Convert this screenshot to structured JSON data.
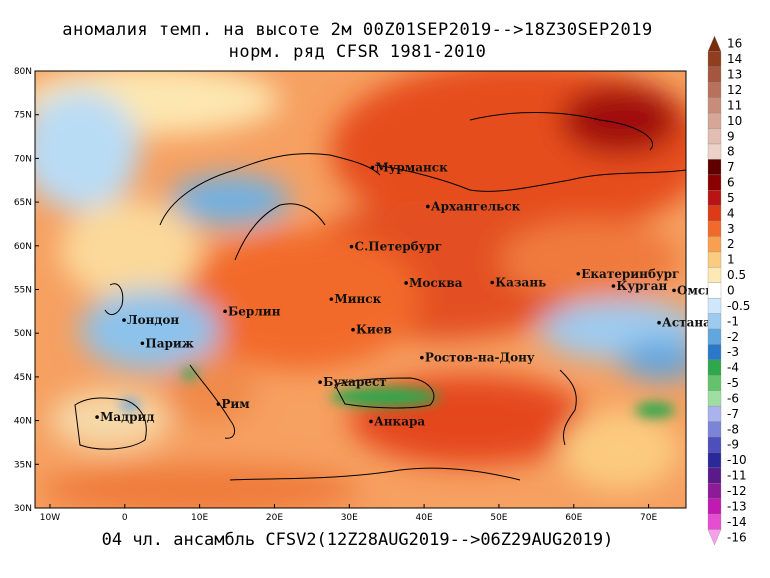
{
  "title_line1": "аномалия темп. на высоте 2м 00Z01SEP2019-->18Z30SEP2019",
  "title_line2": "норм. ряд CFSR 1981-2010",
  "footer": "04 чл. ансамбль CFSV2(12Z28AUG2019-->06Z29AUG2019)",
  "map": {
    "lon_range": [
      -12,
      75
    ],
    "lat_range": [
      30,
      80
    ],
    "lat_labels": [
      "80N",
      "75N",
      "70N",
      "65N",
      "60N",
      "55N",
      "50N",
      "45N",
      "40N",
      "35N",
      "30N"
    ],
    "lon_labels": [
      "10W",
      "0",
      "10E",
      "20E",
      "30E",
      "40E",
      "50E",
      "60E",
      "70E"
    ],
    "cities": [
      {
        "name": "Мурманск",
        "lon": 33.1,
        "lat": 68.97
      },
      {
        "name": "Архангельск",
        "lon": 40.5,
        "lat": 64.5
      },
      {
        "name": "С.Петербург",
        "lon": 30.3,
        "lat": 59.9
      },
      {
        "name": "Екатеринбург",
        "lon": 60.6,
        "lat": 56.8
      },
      {
        "name": "Москва",
        "lon": 37.6,
        "lat": 55.75
      },
      {
        "name": "Казань",
        "lon": 49.1,
        "lat": 55.8
      },
      {
        "name": "Курган",
        "lon": 65.3,
        "lat": 55.4
      },
      {
        "name": "Омск",
        "lon": 73.4,
        "lat": 54.9
      },
      {
        "name": "Берлин",
        "lon": 13.4,
        "lat": 52.5
      },
      {
        "name": "Минск",
        "lon": 27.6,
        "lat": 53.9
      },
      {
        "name": "Лондон",
        "lon": -0.1,
        "lat": 51.5
      },
      {
        "name": "Астана",
        "lon": 71.4,
        "lat": 51.2
      },
      {
        "name": "Киев",
        "lon": 30.5,
        "lat": 50.4
      },
      {
        "name": "Париж",
        "lon": 2.35,
        "lat": 48.85
      },
      {
        "name": "Ростов-на-Дону",
        "lon": 39.7,
        "lat": 47.2
      },
      {
        "name": "Бухарест",
        "lon": 26.1,
        "lat": 44.4
      },
      {
        "name": "Мадрид",
        "lon": -3.7,
        "lat": 40.4
      },
      {
        "name": "Рим",
        "lon": 12.5,
        "lat": 41.9
      },
      {
        "name": "Анкара",
        "lon": 32.9,
        "lat": 39.9
      }
    ]
  },
  "colorbar": {
    "labels": [
      "16",
      "14",
      "13",
      "12",
      "11",
      "10",
      "9",
      "8",
      "7",
      "6",
      "5",
      "4",
      "3",
      "2",
      "1",
      "0.5",
      "0",
      "-0.5",
      "-1",
      "-2",
      "-3",
      "-4",
      "-5",
      "-6",
      "-7",
      "-8",
      "-9",
      "-10",
      "-11",
      "-12",
      "-13",
      "-14",
      "-16"
    ],
    "colors": [
      "#7a2d0d",
      "#8f3e1f",
      "#a55640",
      "#b8715d",
      "#c88c7b",
      "#d6a698",
      "#e2bdb2",
      "#ebd1c8",
      "#5e0000",
      "#8b0000",
      "#b81414",
      "#dd3b17",
      "#f26a2a",
      "#f9a050",
      "#fbcb80",
      "#fde9b3",
      "#ffffff",
      "#cfe7fa",
      "#9dcbf0",
      "#62a6de",
      "#2a78c8",
      "#2ea84d",
      "#63c36b",
      "#9fdda0",
      "#aab3ee",
      "#7c84d8",
      "#4d4fbc",
      "#2b2899",
      "#5a1a8a",
      "#8c1a99",
      "#c11ab2",
      "#e64dd1",
      "#f6a0ec"
    ]
  }
}
